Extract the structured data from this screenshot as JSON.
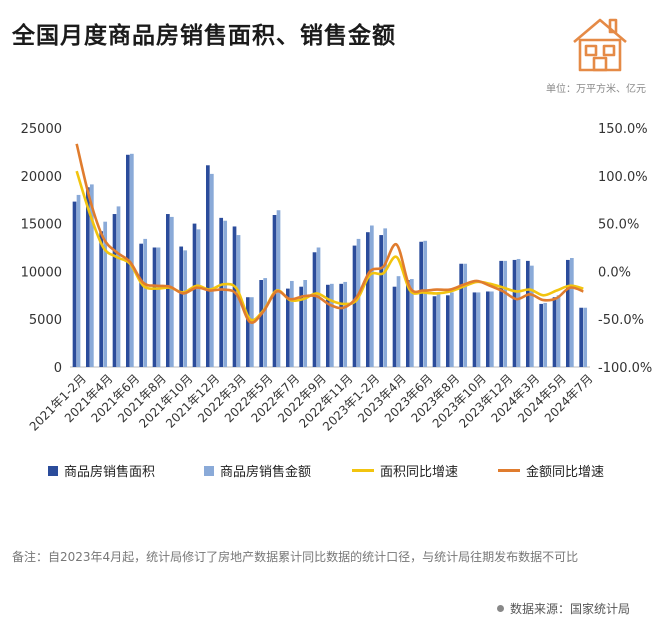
{
  "header": {
    "title": "全国月度商品房销售面积、销售金额",
    "unit": "单位：万平方米、亿元"
  },
  "legend": {
    "area": "商品房销售面积",
    "amount": "商品房销售金额",
    "area_yoy": "面积同比增速",
    "amount_yoy": "金额同比增速"
  },
  "footer": {
    "note": "备注：自2023年4月起，统计局修订了房地产数据累计同比数据的统计口径，与统计局往期发布数据不可比",
    "source": "数据来源：国家统计局"
  },
  "colors": {
    "area": "#2b4c9b",
    "amount": "#8aaad8",
    "area_yoy": "#f2c40f",
    "amount_yoy": "#e07c2e"
  },
  "chart_data": {
    "type": "bar",
    "categories": [
      "2021年1-2月",
      "2021年3月",
      "2021年4月",
      "2021年5月",
      "2021年6月",
      "2021年7月",
      "2021年8月",
      "2021年9月",
      "2021年10月",
      "2021年11月",
      "2021年12月",
      "2022年1-2月",
      "2022年3月",
      "2022年4月",
      "2022年5月",
      "2022年6月",
      "2022年7月",
      "2022年8月",
      "2022年9月",
      "2022年10月",
      "2022年11月",
      "2022年12月",
      "2023年1-2月",
      "2023年3月",
      "2023年4月",
      "2023年5月",
      "2023年6月",
      "2023年7月",
      "2023年8月",
      "2023年9月",
      "2023年10月",
      "2023年11月",
      "2023年12月",
      "2024年1-2月",
      "2024年3月",
      "2024年4月",
      "2024年5月",
      "2024年6月",
      "2024年7月"
    ],
    "tick_labels": [
      "2021年1-2月",
      "2021年4月",
      "2021年6月",
      "2021年8月",
      "2021年10月",
      "2021年12月",
      "2022年3月",
      "2022年5月",
      "2022年7月",
      "2022年9月",
      "2022年11月",
      "2023年1-2月",
      "2023年4月",
      "2023年6月",
      "2023年8月",
      "2023年10月",
      "2023年12月",
      "2024年3月",
      "2024年5月",
      "2024年7月"
    ],
    "series": [
      {
        "name": "商品房销售面积",
        "kind": "bar",
        "axis": "left",
        "values": [
          17300,
          18800,
          14200,
          16000,
          22200,
          12900,
          12500,
          16000,
          12600,
          15000,
          21100,
          15600,
          14700,
          7300,
          9100,
          15900,
          8200,
          8400,
          12000,
          8600,
          8700,
          12700,
          14100,
          13800,
          8400,
          9100,
          13100,
          7400,
          7500,
          10800,
          7800,
          7900,
          11100,
          11200,
          11100,
          6600,
          7300,
          11200,
          6200
        ]
      },
      {
        "name": "商品房销售金额",
        "kind": "bar",
        "axis": "left",
        "values": [
          18000,
          19100,
          15200,
          16800,
          22300,
          13400,
          12500,
          15700,
          12200,
          14400,
          20200,
          15300,
          13800,
          7300,
          9300,
          16400,
          9000,
          9100,
          12500,
          8700,
          8900,
          13400,
          14800,
          14500,
          9500,
          9200,
          13200,
          7700,
          7800,
          10800,
          7800,
          7900,
          11100,
          11300,
          10600,
          6700,
          7500,
          11400,
          6200
        ]
      },
      {
        "name": "面积同比增速",
        "kind": "line",
        "axis": "right",
        "values": [
          104.9,
          60.0,
          25.0,
          15.0,
          8.0,
          -15.0,
          -18.0,
          -17.0,
          -22.0,
          -15.0,
          -19.0,
          -13.5,
          -18.0,
          -50.0,
          -41.0,
          -20.0,
          -30.0,
          -29.0,
          -23.0,
          -30.0,
          -34.0,
          -30.0,
          -3.6,
          -2.0,
          15.0,
          -20.0,
          -22.0,
          -23.0,
          -21.0,
          -16.0,
          -11.0,
          -13.0,
          -17.0,
          -21.0,
          -19.0,
          -25.0,
          -20.0,
          -15.0,
          -18.0
        ]
      },
      {
        "name": "金额同比增速",
        "kind": "line",
        "axis": "right",
        "values": [
          133.4,
          75.0,
          35.0,
          20.0,
          10.0,
          -12.0,
          -15.0,
          -16.0,
          -23.0,
          -17.0,
          -20.0,
          -19.0,
          -24.0,
          -53.0,
          -42.0,
          -21.0,
          -29.0,
          -26.0,
          -26.0,
          -35.0,
          -38.0,
          -27.0,
          0.0,
          5.0,
          28.0,
          -17.0,
          -20.0,
          -19.0,
          -19.0,
          -14.0,
          -10.0,
          -15.0,
          -21.0,
          -29.0,
          -24.0,
          -30.0,
          -28.0,
          -17.0,
          -21.0
        ]
      }
    ],
    "y_left": {
      "min": 0,
      "max": 25000,
      "ticks": [
        0,
        5000,
        10000,
        15000,
        20000,
        25000
      ]
    },
    "y_right": {
      "min": -100,
      "max": 150,
      "ticks": [
        "150.0%",
        "100.0%",
        "50.0%",
        "0.0%",
        "-50.0%",
        "-100.0%"
      ]
    },
    "grid": false,
    "legend_position": "bottom"
  }
}
